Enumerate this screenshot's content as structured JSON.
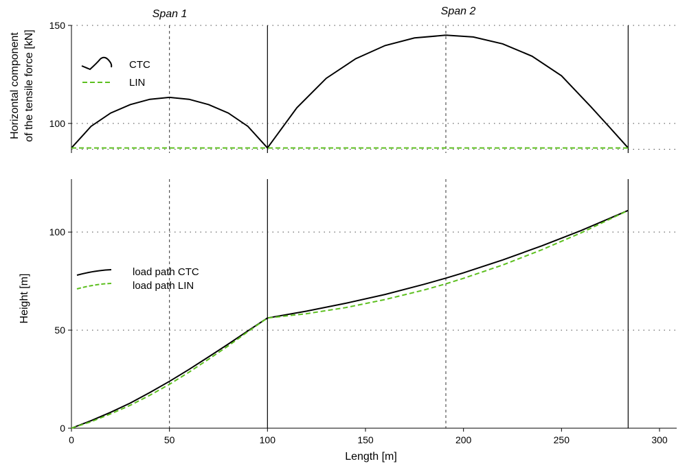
{
  "chart_data": [
    {
      "type": "line",
      "span_labels": [
        "Span 1",
        "Span 2"
      ],
      "ylabel": "Horizontal component\nof the tensile force [kN]",
      "xlim": [
        0,
        300
      ],
      "ylim": [
        87,
        150
      ],
      "yticks": [
        100,
        150
      ],
      "grid": true,
      "legend_position": "top-left",
      "supports_x": [
        100,
        284
      ],
      "span_midlines_x": [
        50,
        191
      ],
      "series": [
        {
          "name": "CTC",
          "color": "#000000",
          "dash": "solid",
          "x": [
            0,
            10,
            20,
            30,
            40,
            50,
            60,
            70,
            80,
            90,
            100,
            115,
            130,
            145,
            160,
            175,
            191,
            205,
            220,
            235,
            250,
            265,
            275,
            284
          ],
          "y": [
            87.5,
            98.5,
            105.3,
            109.6,
            112.3,
            113.3,
            112.3,
            109.6,
            105.3,
            98.5,
            87.5,
            108.0,
            123.0,
            133.0,
            139.7,
            143.6,
            145.0,
            144.1,
            140.6,
            134.3,
            124.3,
            108.5,
            97.5,
            87.5
          ]
        },
        {
          "name": "LIN",
          "color": "#5cbf1e",
          "dash": "dashed",
          "x": [
            0,
            284
          ],
          "y": [
            87.5,
            87.5
          ]
        }
      ]
    },
    {
      "type": "line",
      "xlabel": "Length [m]",
      "ylabel": "Height [m]",
      "xlim": [
        0,
        300
      ],
      "ylim": [
        0,
        127
      ],
      "xticks": [
        0,
        50,
        100,
        150,
        200,
        250,
        300
      ],
      "yticks": [
        0,
        50,
        100
      ],
      "grid": true,
      "legend_position": "middle-left",
      "supports_x": [
        100,
        284
      ],
      "span_midlines_x": [
        50,
        191
      ],
      "series": [
        {
          "name": "load path CTC",
          "color": "#000000",
          "dash": "solid",
          "x": [
            0,
            10,
            20,
            30,
            40,
            50,
            60,
            70,
            80,
            90,
            100,
            120,
            140,
            160,
            180,
            191,
            200,
            220,
            240,
            260,
            284
          ],
          "y": [
            0,
            3.8,
            8.1,
            12.8,
            18.2,
            23.9,
            30.0,
            36.4,
            42.9,
            49.6,
            56.2,
            59.7,
            63.7,
            68.2,
            73.4,
            76.5,
            79.2,
            85.8,
            93.0,
            100.8,
            111.0
          ]
        },
        {
          "name": "load path LIN",
          "color": "#5cbf1e",
          "dash": "dashed",
          "x": [
            0,
            10,
            20,
            30,
            40,
            50,
            60,
            70,
            80,
            90,
            100,
            120,
            140,
            160,
            180,
            191,
            200,
            220,
            240,
            260,
            284
          ],
          "y": [
            0,
            3.3,
            7.3,
            11.7,
            16.8,
            22.4,
            28.6,
            35.2,
            42.0,
            49.2,
            56.2,
            58.4,
            61.5,
            65.6,
            70.5,
            73.6,
            76.4,
            83.2,
            91.0,
            99.6,
            111.0
          ]
        }
      ]
    }
  ]
}
